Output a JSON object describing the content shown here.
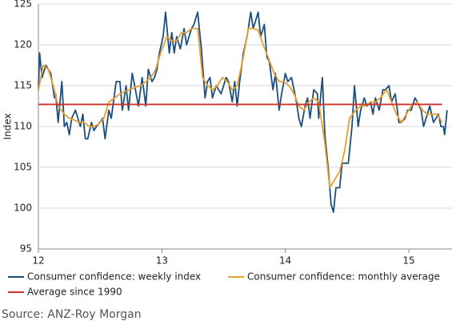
{
  "chart_data": {
    "type": "line",
    "y_label": "Index",
    "source": "Source: ANZ-Roy Morgan",
    "xlim": [
      12,
      15.35
    ],
    "xticks": [
      12,
      13,
      14,
      15
    ],
    "ylim": [
      95,
      125
    ],
    "yticks": [
      95,
      100,
      105,
      110,
      115,
      120,
      125
    ],
    "grid": true,
    "legend": "bottom",
    "series": [
      {
        "name": "Consumer confidence: weekly index",
        "color": "#1c4f7c",
        "x": [
          12.0,
          12.01,
          12.03,
          12.06,
          12.08,
          12.1,
          12.13,
          12.14,
          12.16,
          12.19,
          12.21,
          12.23,
          12.25,
          12.27,
          12.3,
          12.32,
          12.34,
          12.36,
          12.38,
          12.4,
          12.43,
          12.45,
          12.47,
          12.5,
          12.52,
          12.54,
          12.57,
          12.59,
          12.63,
          12.66,
          12.68,
          12.71,
          12.73,
          12.76,
          12.78,
          12.81,
          12.84,
          12.87,
          12.89,
          12.92,
          12.94,
          12.96,
          12.98,
          13.01,
          13.03,
          13.06,
          13.08,
          13.1,
          13.12,
          13.15,
          13.18,
          13.2,
          13.22,
          13.24,
          13.26,
          13.29,
          13.32,
          13.35,
          13.37,
          13.39,
          13.41,
          13.44,
          13.46,
          13.48,
          13.52,
          13.54,
          13.57,
          13.59,
          13.61,
          13.63,
          13.66,
          13.69,
          13.72,
          13.74,
          13.78,
          13.8,
          13.83,
          13.85,
          13.87,
          13.9,
          13.92,
          13.95,
          13.97,
          14.0,
          14.02,
          14.05,
          14.07,
          14.09,
          14.11,
          14.13,
          14.16,
          14.18,
          14.2,
          14.23,
          14.26,
          14.27,
          14.3,
          14.32,
          14.35,
          14.37,
          14.39,
          14.41,
          14.44,
          14.46,
          14.49,
          14.51,
          14.54,
          14.56,
          14.59,
          14.61,
          14.64,
          14.66,
          14.69,
          14.71,
          14.73,
          14.76,
          14.79,
          14.81,
          14.84,
          14.86,
          14.89,
          14.92,
          14.94,
          14.97,
          14.99,
          15.02,
          15.05,
          15.07,
          15.1,
          15.12,
          15.14,
          15.17,
          15.2,
          15.22,
          15.24,
          15.26,
          15.28,
          15.29,
          15.31
        ],
        "values": [
          114.5,
          119,
          116,
          117.5,
          117,
          116.5,
          113.5,
          114,
          110.5,
          115.5,
          110,
          110.5,
          109,
          111,
          112,
          111,
          110,
          111.5,
          108.5,
          108.5,
          110.5,
          109.5,
          110,
          110.5,
          111,
          108.5,
          112,
          111,
          115.5,
          115.5,
          112,
          115,
          112,
          116.5,
          115,
          112.5,
          116,
          112.5,
          117,
          115.5,
          116,
          117,
          119,
          121,
          124,
          119,
          121.5,
          119,
          121,
          119.5,
          122,
          120,
          121,
          122,
          122.5,
          124,
          119.5,
          113.5,
          115.5,
          116,
          113.5,
          115,
          114.5,
          114,
          116,
          115.5,
          113,
          115.5,
          112.5,
          115.5,
          119,
          121,
          124,
          122,
          124,
          121,
          122.5,
          118.5,
          118,
          114.5,
          116.5,
          112,
          114,
          116.5,
          115.5,
          116,
          114.5,
          113,
          111,
          110,
          112.5,
          113.5,
          111,
          114.5,
          114,
          111,
          116,
          109,
          104.5,
          100.5,
          99.5,
          102.5,
          102.5,
          105.5,
          105.5,
          105.5,
          110,
          115,
          110,
          112,
          113.5,
          112.5,
          113,
          111.5,
          113.5,
          112,
          114.5,
          114.5,
          115,
          113,
          114,
          110.5,
          110.5,
          111,
          112,
          112,
          113.5,
          113,
          112,
          110,
          111,
          112.5,
          110.5,
          111,
          111.5,
          110,
          110,
          109,
          112
        ]
      },
      {
        "name": "Consumer confidence: monthly average",
        "color": "#e8a030",
        "x": [
          12.0,
          12.04,
          12.08,
          12.12,
          12.16,
          12.21,
          12.25,
          12.29,
          12.33,
          12.37,
          12.41,
          12.45,
          12.49,
          12.53,
          12.57,
          12.62,
          12.66,
          12.7,
          12.74,
          12.78,
          12.83,
          12.87,
          12.91,
          12.95,
          12.99,
          13.04,
          13.08,
          13.12,
          13.16,
          13.2,
          13.24,
          13.29,
          13.33,
          13.37,
          13.41,
          13.45,
          13.49,
          13.53,
          13.57,
          13.61,
          13.66,
          13.7,
          13.74,
          13.78,
          13.82,
          13.86,
          13.91,
          13.95,
          13.99,
          14.03,
          14.07,
          14.11,
          14.15,
          14.19,
          14.23,
          14.27,
          14.32,
          14.36,
          14.4,
          14.44,
          14.48,
          14.52,
          14.57,
          14.61,
          14.65,
          14.69,
          14.73,
          14.77,
          14.82,
          14.86,
          14.9,
          14.94,
          14.98,
          15.02,
          15.07,
          15.11,
          15.15,
          15.19,
          15.23,
          15.27
        ],
        "values": [
          114.5,
          117.5,
          117,
          115,
          112.5,
          111.5,
          111,
          110.8,
          110.5,
          110.5,
          110,
          110,
          110.3,
          111,
          113,
          113.5,
          114,
          114.3,
          114.5,
          114.8,
          115,
          115.5,
          116,
          117,
          119,
          121,
          120.5,
          120.5,
          121.5,
          121.5,
          122,
          122,
          116,
          115,
          114.5,
          115,
          116,
          115.5,
          114.5,
          115,
          118.5,
          122,
          122,
          121.8,
          120,
          118.5,
          116.5,
          115.5,
          115.5,
          115,
          114,
          112.5,
          112,
          113,
          113.5,
          113,
          108,
          102.5,
          103.5,
          104.5,
          107,
          111,
          112,
          112.5,
          112.5,
          113,
          113,
          113.5,
          114.5,
          113,
          111.5,
          110.5,
          111.5,
          112.5,
          113,
          112,
          111.5,
          111.5,
          111.5,
          110.5
        ]
      },
      {
        "name": "Average since 1990",
        "color": "#d0312d",
        "x": [
          12.0,
          15.27
        ],
        "values": [
          112.7,
          112.7
        ]
      }
    ]
  }
}
